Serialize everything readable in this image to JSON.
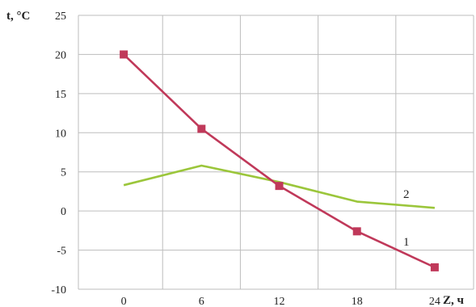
{
  "chart_data": {
    "type": "line",
    "title": "",
    "xlabel": "Z, ч",
    "ylabel": "t, °C",
    "x": [
      0,
      6,
      12,
      18,
      24
    ],
    "x_ticks": [
      "0",
      "6",
      "12",
      "18",
      "24"
    ],
    "y_ticks": [
      "25",
      "20",
      "15",
      "10",
      "5",
      "0",
      "-5",
      "-10"
    ],
    "xlim": [
      -3.5,
      27
    ],
    "ylim": [
      -10,
      25
    ],
    "grid": true,
    "series": [
      {
        "name": "1",
        "values": [
          20,
          10.5,
          3.2,
          -2.6,
          -7.2
        ],
        "color": "#c0395a",
        "marker": "square"
      },
      {
        "name": "2",
        "values": [
          3.3,
          5.8,
          3.7,
          1.2,
          0.4
        ],
        "color": "#9bc63b",
        "marker": "none"
      }
    ]
  }
}
